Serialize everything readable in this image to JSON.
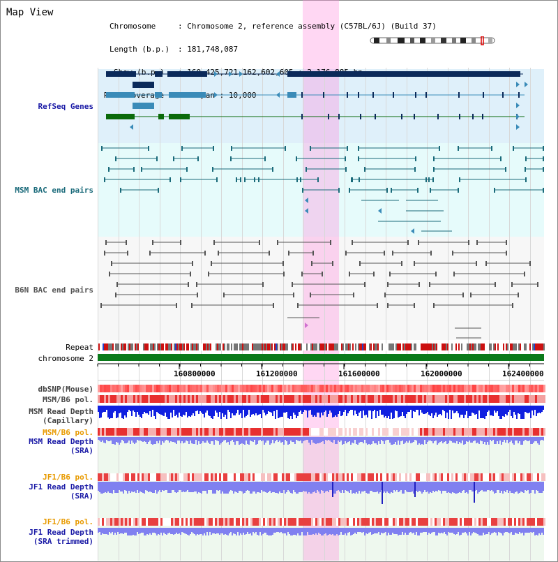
{
  "page": {
    "title": "Map View"
  },
  "info": {
    "chromosome_key": "Chromosome",
    "chromosome_val": ": Chromosome 2, reference assembly (C57BL/6J) (Build 37)",
    "length_key": "Length (b.p.)",
    "length_val": ": 181,748,087",
    "show_key": "Show (b.p.)",
    "show_val": ": 160,425,721-162,602,605 : 2,176,885 bp",
    "coverage_key": "Read coverage check span",
    "coverage_val": ": 10,000"
  },
  "tracks": {
    "refseq": {
      "label": "RefSeq Genes",
      "color": "#1a1aa6"
    },
    "msm_bac": {
      "label": "MSM BAC end pairs",
      "color": "#1a6a7a"
    },
    "b6n_bac": {
      "label": "B6N BAC end pairs",
      "color": "#555555"
    },
    "repeat": {
      "label": "Repeat"
    },
    "chromosome": {
      "label": "chromosome 2"
    },
    "dbsnp": {
      "label": "dbSNP(Mouse)"
    },
    "msm_b6_pol": {
      "label": "MSM/B6 pol."
    },
    "msm_read_depth_cap_1": {
      "label": "MSM Read Depth"
    },
    "msm_read_depth_cap_2": {
      "label": "(Capillary)"
    },
    "msm_b6_pol_2": {
      "label": "MSM/B6 pol."
    },
    "msm_read_depth_sra_1": {
      "label": "MSM Read Depth"
    },
    "msm_read_depth_sra_2": {
      "label": "(SRA)"
    },
    "jf1_b6_pol": {
      "label": "JF1/B6 pol."
    },
    "jf1_read_depth_sra_1": {
      "label": "JF1 Read Depth"
    },
    "jf1_read_depth_sra_2": {
      "label": "(SRA)"
    },
    "jf1_b6_pol_2": {
      "label": "JF1/B6 pol."
    },
    "jf1_read_depth_trim_1": {
      "label": "JF1 Read Depth"
    },
    "jf1_read_depth_trim_2": {
      "label": "(SRA trimmed)"
    }
  },
  "axis": {
    "ticks": [
      "160800000",
      "161200000",
      "161600000",
      "162000000",
      "162400000"
    ]
  },
  "colors": {
    "refseq_bg": "#dff0fa",
    "msm_bg": "#e6fbfb",
    "b6n_bg": "#f6f6f6",
    "highlight": "#f8c8ee",
    "gene_dark": "#0b2a5a",
    "gene_mid": "#3a8bb8",
    "gene_green": "#0a6a0a",
    "chrom_green": "#0a7a1a",
    "read_depth_blue": "#1020e0",
    "sra_blue": "#8080f0"
  }
}
